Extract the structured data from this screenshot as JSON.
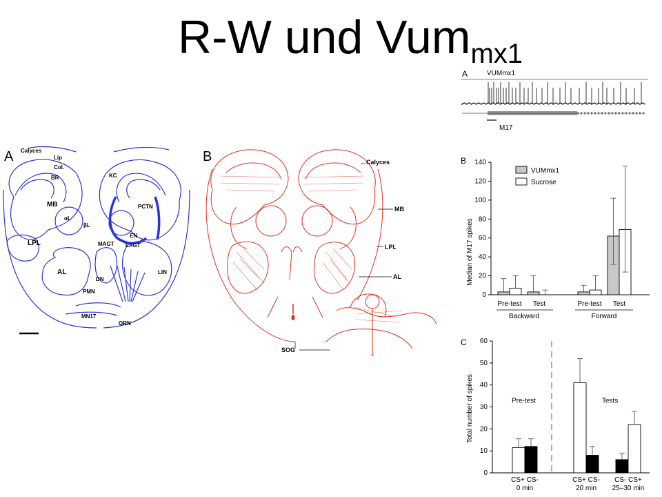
{
  "title": {
    "main": "R-W und Vum",
    "sub": "mx1"
  },
  "brain_a": {
    "panel_label": "A",
    "labels": [
      "Calyces",
      "Lip",
      "Col.",
      "BR",
      "KC",
      "MB",
      "PCTN",
      "αL",
      "βL",
      "LPL",
      "EN",
      "MAGT",
      "LAGT",
      "AL",
      "DN",
      "LIN",
      "PMN",
      "MN17",
      "ORN"
    ],
    "color": "#2a35d6"
  },
  "brain_b": {
    "panel_label": "B",
    "labels": [
      "Calyces",
      "MB",
      "LPL",
      "AL",
      "SOG"
    ],
    "color": "#e0301e"
  },
  "trace": {
    "panel_label": "A",
    "neuron_label": "VUMmx1",
    "stim_label": "M17"
  },
  "chart_b": {
    "panel_label": "B",
    "chart_data": {
      "type": "bar",
      "ylabel": "Median of M17 spikes",
      "ylim": [
        0,
        140
      ],
      "yticks": [
        0,
        20,
        40,
        60,
        80,
        100,
        120,
        140
      ],
      "categories": [
        "Pre-test",
        "Test",
        "Pre-test",
        "Test"
      ],
      "groups": [
        "Backward",
        "Forward"
      ],
      "series": [
        {
          "name": "VUMmx1",
          "values": [
            3,
            3,
            3,
            62
          ],
          "err_hi": [
            17,
            20,
            10,
            102
          ],
          "err_lo": [
            0,
            0,
            0,
            32
          ],
          "color": "#c8c8c8"
        },
        {
          "name": "Sucrose",
          "values": [
            7,
            0,
            5,
            69
          ],
          "err_hi": [
            20,
            5,
            20,
            136
          ],
          "err_lo": [
            0,
            0,
            0,
            24
          ],
          "color": "#ffffff"
        }
      ]
    }
  },
  "chart_c": {
    "panel_label": "C",
    "chart_data": {
      "type": "bar",
      "ylabel": "Total number of spikes",
      "ylim": [
        0,
        60
      ],
      "yticks": [
        0,
        10,
        20,
        30,
        40,
        50,
        60
      ],
      "annotations": [
        "Pre-test",
        "Tests"
      ],
      "groups": [
        {
          "line1": "CS+ CS-",
          "line2": "0 min",
          "bars": [
            {
              "value": 11.5,
              "err": 15.5,
              "fill": "#ffffff"
            },
            {
              "value": 12,
              "err": 15.5,
              "fill": "#000000"
            }
          ]
        },
        {
          "line1": "CS+ CS-",
          "line2": "20 min",
          "bars": [
            {
              "value": 41,
              "err": 52,
              "fill": "#ffffff"
            },
            {
              "value": 8,
              "err": 12,
              "fill": "#000000"
            }
          ]
        },
        {
          "line1": "CS- CS+",
          "line2": "25–30 min",
          "bars": [
            {
              "value": 6,
              "err": 9,
              "fill": "#000000"
            },
            {
              "value": 22,
              "err": 28,
              "fill": "#ffffff"
            }
          ]
        }
      ]
    }
  }
}
